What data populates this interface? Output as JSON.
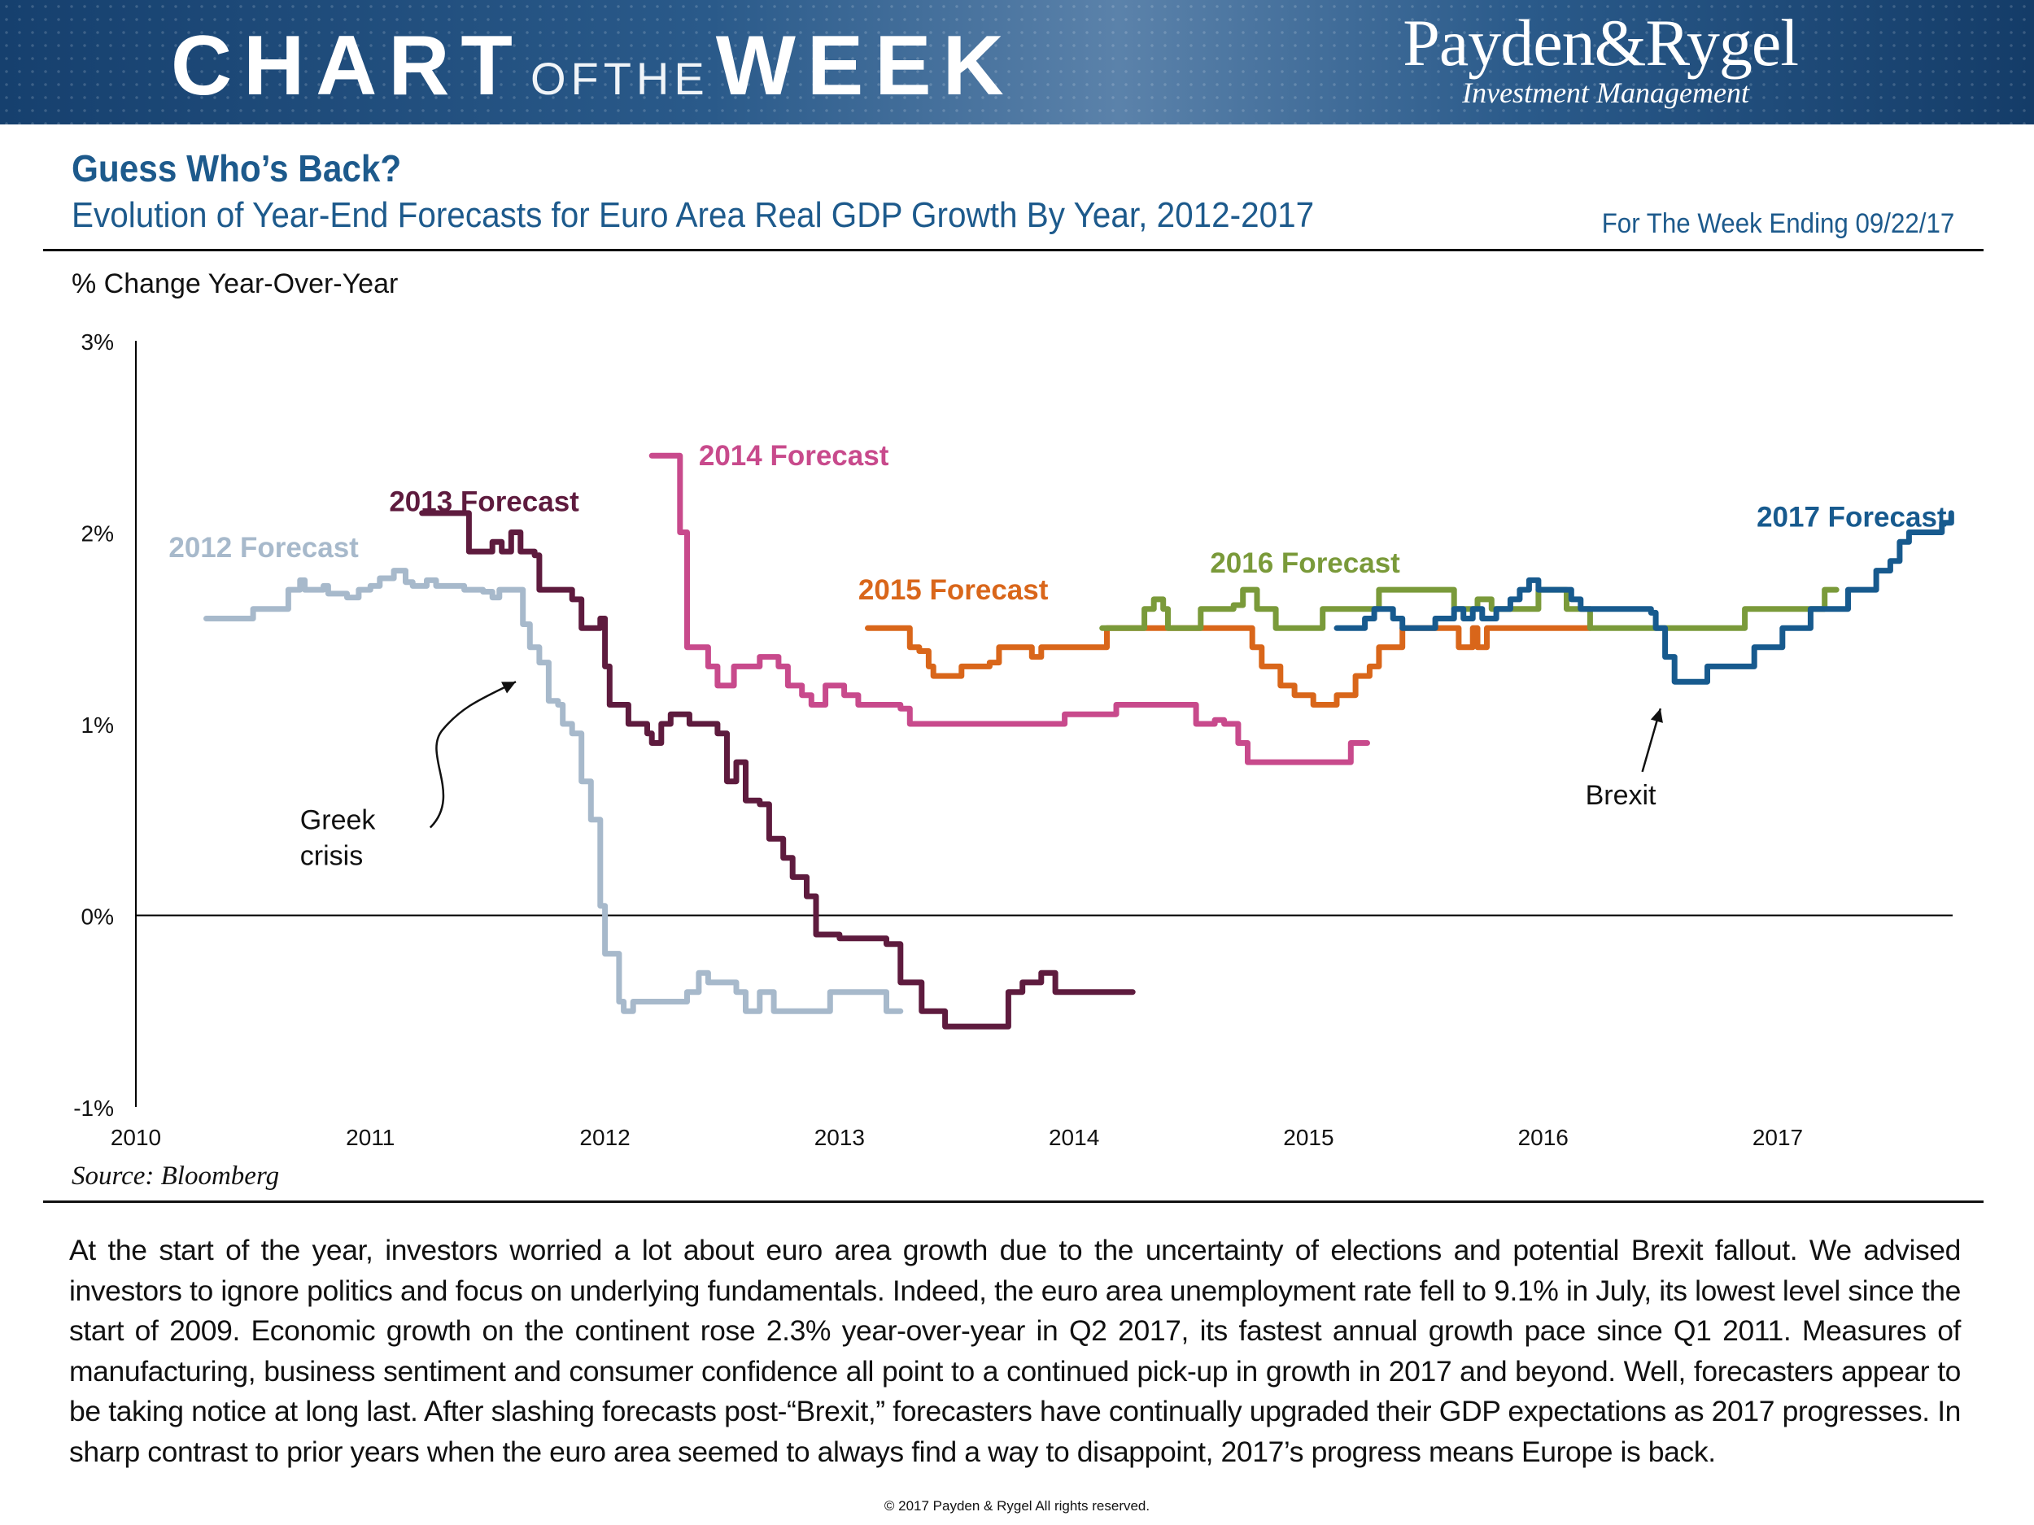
{
  "header": {
    "banner_left": "CHART",
    "banner_mid": "OFTHE",
    "banner_right": "WEEK",
    "logo_name": "Payden&Rygel",
    "logo_sub": "Investment Management"
  },
  "title": "Guess Who’s Back?",
  "subtitle": "Evolution of Year-End Forecasts for Euro Area Real GDP Growth By Year, 2012-2017",
  "week_ending": "For The Week Ending 09/22/17",
  "source": "Source: Bloomberg",
  "body": "At the start of the year, investors worried a lot about euro area growth due to the uncertainty of elections and potential Brexit fallout. We advised investors to ignore politics and focus on underlying fundamentals. Indeed, the euro area unemployment rate fell to 9.1% in July, its lowest level since the start of 2009. Economic growth on the continent rose 2.3% year-over-year in Q2 2017, its fastest annual growth pace since Q1 2011. Measures of manufacturing, business sentiment and consumer confidence all point to a continued pick-up in growth in 2017 and beyond. Well, forecasters appear to be taking notice at long last. After slashing forecasts post-“Brexit,” forecasters have continually upgraded their GDP expectations as 2017 progresses. In sharp contrast to prior years when the euro area seemed to always find a way to disappoint, 2017’s progress means Europe is back.",
  "copyright": "© 2017 Payden & Rygel All rights reserved.",
  "chart_data": {
    "type": "line",
    "title": "Evolution of Year-End Forecasts for Euro Area Real GDP Growth By Year, 2012-2017",
    "ylabel": "% Change Year-Over-Year",
    "xlabel": "",
    "xlim": [
      2010,
      2017.78
    ],
    "ylim": [
      -1,
      3
    ],
    "yticks": [
      {
        "value": 3,
        "label": "3%"
      },
      {
        "value": 2,
        "label": "2%"
      },
      {
        "value": 1,
        "label": "1%"
      },
      {
        "value": 0,
        "label": "0%"
      },
      {
        "value": -1,
        "label": "-1%"
      }
    ],
    "xticks": [
      {
        "value": 2010,
        "label": "2010"
      },
      {
        "value": 2011,
        "label": "2011"
      },
      {
        "value": 2012,
        "label": "2012"
      },
      {
        "value": 2013,
        "label": "2013"
      },
      {
        "value": 2014,
        "label": "2014"
      },
      {
        "value": 2015,
        "label": "2015"
      },
      {
        "value": 2016,
        "label": "2016"
      },
      {
        "value": 2017,
        "label": "2017"
      }
    ],
    "series": [
      {
        "name": "2012 Forecast",
        "color": "#a7b9cb",
        "label_at": [
          2010.14,
          1.87
        ],
        "points": [
          [
            2010.3,
            1.55
          ],
          [
            2010.4,
            1.55
          ],
          [
            2010.5,
            1.6
          ],
          [
            2010.65,
            1.7
          ],
          [
            2010.7,
            1.75
          ],
          [
            2010.72,
            1.7
          ],
          [
            2010.8,
            1.72
          ],
          [
            2010.82,
            1.68
          ],
          [
            2010.9,
            1.66
          ],
          [
            2010.95,
            1.7
          ],
          [
            2011.0,
            1.72
          ],
          [
            2011.04,
            1.76
          ],
          [
            2011.1,
            1.8
          ],
          [
            2011.15,
            1.74
          ],
          [
            2011.18,
            1.72
          ],
          [
            2011.24,
            1.75
          ],
          [
            2011.28,
            1.72
          ],
          [
            2011.36,
            1.72
          ],
          [
            2011.4,
            1.7
          ],
          [
            2011.48,
            1.69
          ],
          [
            2011.52,
            1.66
          ],
          [
            2011.55,
            1.7
          ],
          [
            2011.63,
            1.7
          ],
          [
            2011.65,
            1.52
          ],
          [
            2011.68,
            1.4
          ],
          [
            2011.72,
            1.32
          ],
          [
            2011.76,
            1.12
          ],
          [
            2011.8,
            1.1
          ],
          [
            2011.82,
            1.0
          ],
          [
            2011.86,
            0.95
          ],
          [
            2011.9,
            0.7
          ],
          [
            2011.94,
            0.5
          ],
          [
            2011.98,
            0.05
          ],
          [
            2012.0,
            -0.2
          ],
          [
            2012.06,
            -0.45
          ],
          [
            2012.08,
            -0.5
          ],
          [
            2012.12,
            -0.45
          ],
          [
            2012.35,
            -0.4
          ],
          [
            2012.4,
            -0.3
          ],
          [
            2012.44,
            -0.35
          ],
          [
            2012.56,
            -0.4
          ],
          [
            2012.6,
            -0.5
          ],
          [
            2012.66,
            -0.4
          ],
          [
            2012.72,
            -0.5
          ],
          [
            2012.92,
            -0.5
          ],
          [
            2012.96,
            -0.4
          ],
          [
            2013.14,
            -0.4
          ],
          [
            2013.2,
            -0.5
          ],
          [
            2013.26,
            -0.5
          ]
        ]
      },
      {
        "name": "2013 Forecast",
        "color": "#5e1b3e",
        "label_at": [
          2011.08,
          2.11
        ],
        "points": [
          [
            2011.22,
            2.1
          ],
          [
            2011.38,
            2.1
          ],
          [
            2011.42,
            1.9
          ],
          [
            2011.52,
            1.95
          ],
          [
            2011.56,
            1.9
          ],
          [
            2011.6,
            2.0
          ],
          [
            2011.64,
            1.9
          ],
          [
            2011.7,
            1.88
          ],
          [
            2011.72,
            1.7
          ],
          [
            2011.86,
            1.65
          ],
          [
            2011.9,
            1.5
          ],
          [
            2011.98,
            1.55
          ],
          [
            2012.0,
            1.3
          ],
          [
            2012.02,
            1.1
          ],
          [
            2012.1,
            1.0
          ],
          [
            2012.18,
            0.95
          ],
          [
            2012.2,
            0.9
          ],
          [
            2012.24,
            1.0
          ],
          [
            2012.28,
            1.05
          ],
          [
            2012.36,
            1.0
          ],
          [
            2012.48,
            0.95
          ],
          [
            2012.52,
            0.7
          ],
          [
            2012.56,
            0.8
          ],
          [
            2012.6,
            0.6
          ],
          [
            2012.66,
            0.58
          ],
          [
            2012.7,
            0.4
          ],
          [
            2012.76,
            0.3
          ],
          [
            2012.8,
            0.2
          ],
          [
            2012.86,
            0.1
          ],
          [
            2012.9,
            -0.1
          ],
          [
            2013.0,
            -0.12
          ],
          [
            2013.2,
            -0.15
          ],
          [
            2013.26,
            -0.35
          ],
          [
            2013.35,
            -0.5
          ],
          [
            2013.45,
            -0.58
          ],
          [
            2013.68,
            -0.58
          ],
          [
            2013.72,
            -0.4
          ],
          [
            2013.78,
            -0.35
          ],
          [
            2013.86,
            -0.3
          ],
          [
            2013.92,
            -0.4
          ],
          [
            2014.25,
            -0.4
          ]
        ]
      },
      {
        "name": "2014 Forecast",
        "color": "#c84a8c",
        "label_at": [
          2012.4,
          2.35
        ],
        "points": [
          [
            2012.2,
            2.4
          ],
          [
            2012.28,
            2.4
          ],
          [
            2012.32,
            2.0
          ],
          [
            2012.35,
            1.4
          ],
          [
            2012.44,
            1.3
          ],
          [
            2012.48,
            1.2
          ],
          [
            2012.55,
            1.3
          ],
          [
            2012.66,
            1.35
          ],
          [
            2012.74,
            1.3
          ],
          [
            2012.78,
            1.2
          ],
          [
            2012.84,
            1.15
          ],
          [
            2012.88,
            1.1
          ],
          [
            2012.94,
            1.2
          ],
          [
            2013.02,
            1.15
          ],
          [
            2013.08,
            1.1
          ],
          [
            2013.26,
            1.08
          ],
          [
            2013.3,
            1.0
          ],
          [
            2013.9,
            1.0
          ],
          [
            2013.96,
            1.05
          ],
          [
            2014.15,
            1.05
          ],
          [
            2014.18,
            1.1
          ],
          [
            2014.5,
            1.1
          ],
          [
            2014.52,
            1.0
          ],
          [
            2014.6,
            1.02
          ],
          [
            2014.64,
            1.0
          ],
          [
            2014.7,
            0.9
          ],
          [
            2014.74,
            0.8
          ],
          [
            2015.14,
            0.8
          ],
          [
            2015.18,
            0.9
          ],
          [
            2015.25,
            0.9
          ]
        ]
      },
      {
        "name": "2015 Forecast",
        "color": "#d9661a",
        "label_at": [
          2013.08,
          1.65
        ],
        "points": [
          [
            2013.12,
            1.5
          ],
          [
            2013.28,
            1.5
          ],
          [
            2013.3,
            1.4
          ],
          [
            2013.34,
            1.38
          ],
          [
            2013.38,
            1.3
          ],
          [
            2013.4,
            1.25
          ],
          [
            2013.48,
            1.25
          ],
          [
            2013.52,
            1.3
          ],
          [
            2013.64,
            1.32
          ],
          [
            2013.68,
            1.4
          ],
          [
            2013.8,
            1.4
          ],
          [
            2013.82,
            1.35
          ],
          [
            2013.86,
            1.4
          ],
          [
            2014.12,
            1.4
          ],
          [
            2014.14,
            1.5
          ],
          [
            2014.7,
            1.5
          ],
          [
            2014.76,
            1.4
          ],
          [
            2014.8,
            1.3
          ],
          [
            2014.88,
            1.2
          ],
          [
            2014.94,
            1.15
          ],
          [
            2015.02,
            1.1
          ],
          [
            2015.12,
            1.15
          ],
          [
            2015.2,
            1.25
          ],
          [
            2015.26,
            1.3
          ],
          [
            2015.3,
            1.4
          ],
          [
            2015.4,
            1.5
          ],
          [
            2015.62,
            1.5
          ],
          [
            2015.64,
            1.4
          ],
          [
            2015.7,
            1.5
          ],
          [
            2015.72,
            1.4
          ],
          [
            2015.76,
            1.5
          ],
          [
            2016.2,
            1.5
          ]
        ]
      },
      {
        "name": "2016 Forecast",
        "color": "#7a9a3a",
        "label_at": [
          2014.58,
          1.79
        ],
        "points": [
          [
            2014.12,
            1.5
          ],
          [
            2014.28,
            1.5
          ],
          [
            2014.3,
            1.6
          ],
          [
            2014.34,
            1.65
          ],
          [
            2014.38,
            1.6
          ],
          [
            2014.4,
            1.5
          ],
          [
            2014.52,
            1.5
          ],
          [
            2014.54,
            1.6
          ],
          [
            2014.6,
            1.6
          ],
          [
            2014.68,
            1.62
          ],
          [
            2014.72,
            1.7
          ],
          [
            2014.78,
            1.6
          ],
          [
            2014.86,
            1.5
          ],
          [
            2015.04,
            1.5
          ],
          [
            2015.06,
            1.6
          ],
          [
            2015.28,
            1.6
          ],
          [
            2015.3,
            1.7
          ],
          [
            2015.6,
            1.7
          ],
          [
            2015.62,
            1.6
          ],
          [
            2015.72,
            1.65
          ],
          [
            2015.78,
            1.6
          ],
          [
            2015.96,
            1.6
          ],
          [
            2015.98,
            1.7
          ],
          [
            2016.08,
            1.7
          ],
          [
            2016.1,
            1.6
          ],
          [
            2016.18,
            1.6
          ],
          [
            2016.2,
            1.5
          ],
          [
            2016.48,
            1.5
          ],
          [
            2016.5,
            1.5
          ],
          [
            2016.82,
            1.5
          ],
          [
            2016.86,
            1.6
          ],
          [
            2017.18,
            1.6
          ],
          [
            2017.2,
            1.7
          ],
          [
            2017.25,
            1.7
          ]
        ]
      },
      {
        "name": "2017 Forecast",
        "color": "#175a8e",
        "label_at": [
          2017.72,
          2.03
        ],
        "points": [
          [
            2015.12,
            1.5
          ],
          [
            2015.2,
            1.5
          ],
          [
            2015.24,
            1.55
          ],
          [
            2015.28,
            1.6
          ],
          [
            2015.36,
            1.55
          ],
          [
            2015.4,
            1.5
          ],
          [
            2015.5,
            1.5
          ],
          [
            2015.54,
            1.55
          ],
          [
            2015.62,
            1.6
          ],
          [
            2015.66,
            1.55
          ],
          [
            2015.7,
            1.6
          ],
          [
            2015.74,
            1.55
          ],
          [
            2015.8,
            1.6
          ],
          [
            2015.86,
            1.65
          ],
          [
            2015.9,
            1.7
          ],
          [
            2015.94,
            1.75
          ],
          [
            2015.98,
            1.7
          ],
          [
            2016.12,
            1.65
          ],
          [
            2016.16,
            1.6
          ],
          [
            2016.46,
            1.58
          ],
          [
            2016.48,
            1.5
          ],
          [
            2016.52,
            1.35
          ],
          [
            2016.56,
            1.22
          ],
          [
            2016.66,
            1.22
          ],
          [
            2016.7,
            1.3
          ],
          [
            2016.88,
            1.3
          ],
          [
            2016.9,
            1.4
          ],
          [
            2017.0,
            1.4
          ],
          [
            2017.02,
            1.5
          ],
          [
            2017.12,
            1.5
          ],
          [
            2017.14,
            1.6
          ],
          [
            2017.28,
            1.6
          ],
          [
            2017.3,
            1.7
          ],
          [
            2017.4,
            1.7
          ],
          [
            2017.42,
            1.8
          ],
          [
            2017.48,
            1.85
          ],
          [
            2017.52,
            1.95
          ],
          [
            2017.56,
            2.0
          ],
          [
            2017.66,
            2.0
          ],
          [
            2017.7,
            2.05
          ],
          [
            2017.74,
            2.1
          ]
        ]
      }
    ],
    "annotations": [
      {
        "lines": [
          "Greek",
          "crisis"
        ],
        "at": [
          2010.7,
          0.45
        ],
        "arrow_to": [
          2011.62,
          1.22
        ]
      },
      {
        "lines": [
          "Brexit"
        ],
        "at": [
          2016.18,
          0.58
        ],
        "arrow_to": [
          2016.5,
          1.08
        ]
      }
    ]
  }
}
